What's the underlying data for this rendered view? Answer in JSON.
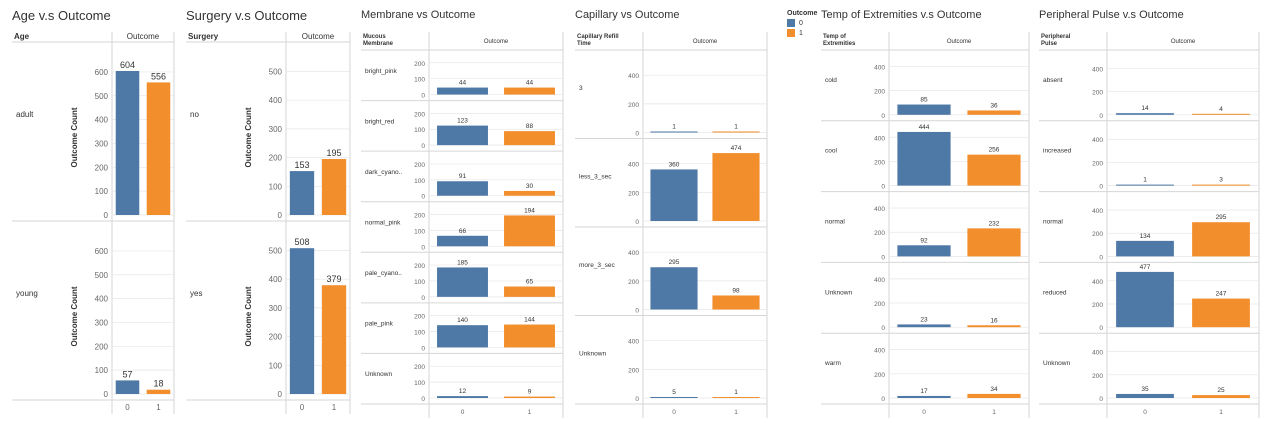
{
  "colors": {
    "class_0": "#4e79a7",
    "class_1": "#f28e2b",
    "grid": "#e6e6e6",
    "border": "#d6d6d6",
    "text": "#333333",
    "axis_text": "#666666"
  },
  "legend": {
    "title": "Outcome",
    "items": [
      {
        "label": "0",
        "color": "#4e79a7"
      },
      {
        "label": "1",
        "color": "#f28e2b"
      }
    ]
  },
  "chart_data": [
    {
      "id": "age",
      "type": "bar",
      "title": "Age v.s Outcome",
      "row_header": "Age",
      "col_header": "Outcome",
      "ylabel": "Outcome Count",
      "categories": [
        "0",
        "1"
      ],
      "y_ticks": [
        0,
        100,
        200,
        300,
        400,
        500,
        600
      ],
      "ylim": [
        0,
        650
      ],
      "rows": [
        {
          "label": "adult",
          "values": [
            604,
            556
          ]
        },
        {
          "label": "young",
          "values": [
            57,
            18
          ]
        }
      ]
    },
    {
      "id": "surgery",
      "type": "bar",
      "title": "Surgery v.s Outcome",
      "row_header": "Surgery",
      "col_header": "Outcome",
      "ylabel": "Outcome Count",
      "categories": [
        "0",
        "1"
      ],
      "y_ticks": [
        0,
        100,
        200,
        300,
        400,
        500
      ],
      "ylim": [
        0,
        540
      ],
      "rows": [
        {
          "label": "no",
          "values": [
            153,
            195
          ]
        },
        {
          "label": "yes",
          "values": [
            508,
            379
          ]
        }
      ]
    },
    {
      "id": "membrane",
      "type": "bar",
      "title": "Membrane vs Outcome",
      "row_header": "Mucous Membrane",
      "col_header": "Outcome",
      "ylabel": "",
      "categories": [
        "0",
        "1"
      ],
      "y_ticks": [
        0,
        100,
        200
      ],
      "ylim": [
        0,
        230
      ],
      "rows": [
        {
          "label": "bright_pink",
          "values": [
            44,
            44
          ]
        },
        {
          "label": "bright_red",
          "values": [
            123,
            88
          ]
        },
        {
          "label": "dark_cyano..",
          "values": [
            91,
            30
          ]
        },
        {
          "label": "normal_pink",
          "values": [
            66,
            194
          ]
        },
        {
          "label": "pale_cyano..",
          "values": [
            185,
            65
          ]
        },
        {
          "label": "pale_pink",
          "values": [
            140,
            144
          ]
        },
        {
          "label": "Unknown",
          "values": [
            12,
            9
          ]
        }
      ]
    },
    {
      "id": "capillary",
      "type": "bar",
      "title": "Capillary vs Outcome",
      "row_header": "Capillary Refill Time",
      "col_header": "Outcome",
      "ylabel": "",
      "categories": [
        "0",
        "1"
      ],
      "y_ticks": [
        0,
        200,
        400
      ],
      "ylim": [
        0,
        520
      ],
      "rows": [
        {
          "label": "3",
          "values": [
            1,
            1
          ]
        },
        {
          "label": "less_3_sec",
          "values": [
            360,
            474
          ]
        },
        {
          "label": "more_3_sec",
          "values": [
            295,
            98
          ]
        },
        {
          "label": "Unknown",
          "values": [
            5,
            1
          ]
        }
      ]
    },
    {
      "id": "temp",
      "type": "bar",
      "title": "Temp of Extremities v.s Outcome",
      "row_header": "Temp of Extremities",
      "col_header": "Outcome",
      "ylabel": "",
      "categories": [
        "0",
        "1"
      ],
      "y_ticks": [
        0,
        200,
        400
      ],
      "ylim": [
        0,
        470
      ],
      "rows": [
        {
          "label": "cold",
          "values": [
            85,
            36
          ]
        },
        {
          "label": "cool",
          "values": [
            444,
            256
          ]
        },
        {
          "label": "normal",
          "values": [
            92,
            232
          ]
        },
        {
          "label": "Unknown",
          "values": [
            23,
            16
          ]
        },
        {
          "label": "warm",
          "values": [
            17,
            34
          ]
        }
      ]
    },
    {
      "id": "pulse",
      "type": "bar",
      "title": "Peripheral Pulse v.s Outcome",
      "row_header": "Peripheral Pulse",
      "col_header": "Outcome",
      "ylabel": "",
      "categories": [
        "0",
        "1"
      ],
      "y_ticks": [
        0,
        200,
        400
      ],
      "ylim": [
        0,
        490
      ],
      "rows": [
        {
          "label": "absent",
          "values": [
            14,
            4
          ]
        },
        {
          "label": "increased",
          "values": [
            1,
            3
          ]
        },
        {
          "label": "normal",
          "values": [
            134,
            295
          ]
        },
        {
          "label": "reduced",
          "values": [
            477,
            247
          ]
        },
        {
          "label": "Unknown",
          "values": [
            35,
            25
          ]
        }
      ]
    }
  ]
}
